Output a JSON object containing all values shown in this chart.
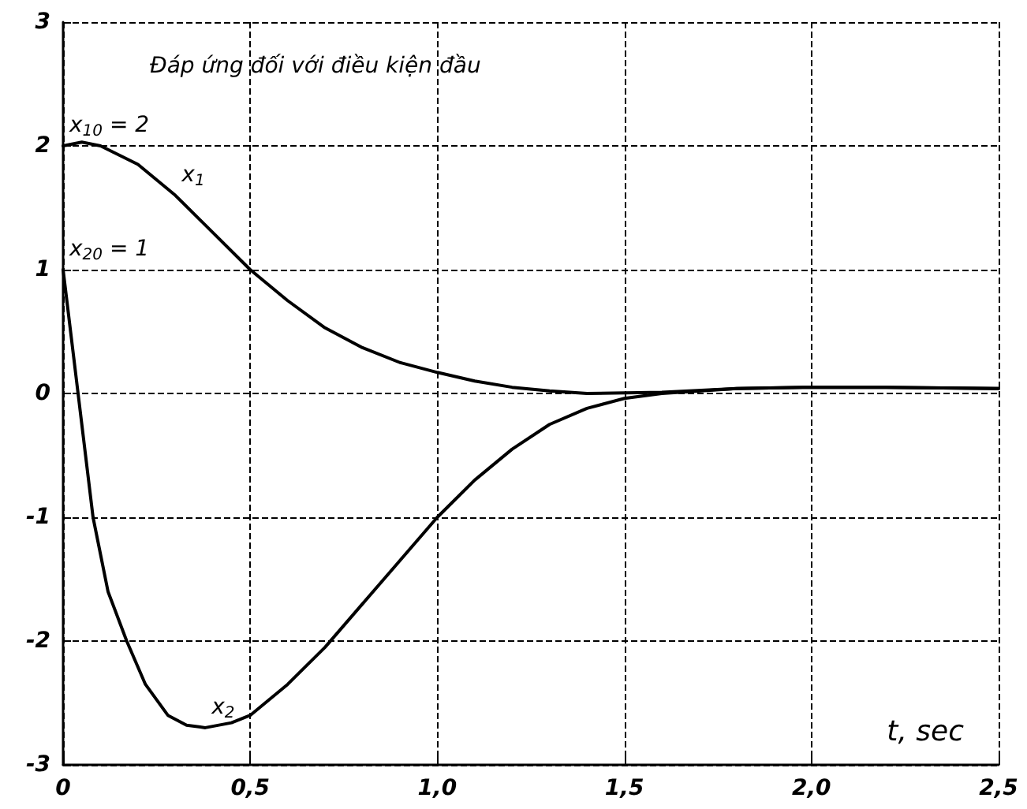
{
  "chart_data": {
    "type": "line",
    "title": "Đáp ứng đối với điều kiện đầu",
    "xlabel": "t, sec",
    "xlim": [
      0,
      2.5
    ],
    "ylim": [
      -3,
      3
    ],
    "xticks": [
      0,
      {
        "value": 0.5,
        "label": "0,5"
      },
      {
        "value": 1,
        "label": "1,0"
      },
      {
        "value": 1.5,
        "label": "1,5"
      },
      {
        "value": 2,
        "label": "2,0"
      },
      {
        "value": 2.5,
        "label": "2,5"
      }
    ],
    "yticks": [
      -3,
      -2,
      -1,
      0,
      1,
      2,
      3
    ],
    "grid": true,
    "line_style": "solid",
    "marker": "none",
    "series": [
      {
        "color": "#000000",
        "x": [
          0,
          0.05,
          0.1,
          0.2,
          0.3,
          0.4,
          0.5,
          0.6,
          0.7,
          0.8,
          0.9,
          1.0,
          1.1,
          1.2,
          1.3,
          1.4,
          1.6,
          1.8,
          2.0,
          2.2,
          2.5
        ],
        "values": [
          2,
          2.03,
          2.0,
          1.85,
          1.6,
          1.3,
          1.0,
          0.75,
          0.53,
          0.37,
          0.25,
          0.17,
          0.1,
          0.05,
          0.02,
          0.0,
          0.01,
          0.04,
          0.05,
          0.05,
          0.04
        ]
      },
      {
        "color": "#000000",
        "x": [
          0,
          0.04,
          0.08,
          0.12,
          0.17,
          0.22,
          0.28,
          0.33,
          0.38,
          0.45,
          0.5,
          0.6,
          0.7,
          0.8,
          0.9,
          1.0,
          1.1,
          1.2,
          1.3,
          1.4,
          1.5,
          1.6,
          1.8,
          2.0,
          2.2,
          2.5
        ],
        "values": [
          1,
          0,
          -1,
          -1.6,
          -2.0,
          -2.35,
          -2.6,
          -2.68,
          -2.7,
          -2.66,
          -2.6,
          -2.35,
          -2.05,
          -1.7,
          -1.35,
          -1.0,
          -0.7,
          -0.45,
          -0.25,
          -0.12,
          -0.04,
          0.0,
          0.04,
          0.05,
          0.05,
          0.04
        ]
      }
    ],
    "annotations": [
      {
        "text": "x$_{10}$ = 2",
        "x": 0,
        "y": 2
      },
      {
        "text": "x$_{20}$ = 1",
        "x": 0,
        "y": 1
      },
      {
        "text": "x$_{1}$",
        "x": 0.3,
        "y": 1.6
      },
      {
        "text": "x$_{2}$",
        "x": 0.38,
        "y": -2.7
      }
    ]
  }
}
